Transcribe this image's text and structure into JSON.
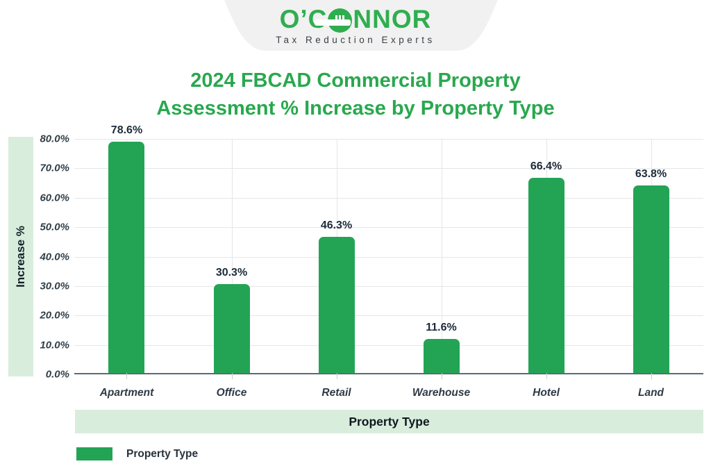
{
  "logo": {
    "brand": "O’CONNOR",
    "brand_prefix": "O’C",
    "brand_suffix": "NNOR",
    "tagline": "Tax Reduction Experts"
  },
  "title": {
    "line1": "2024 FBCAD Commercial Property",
    "line2": "Assessment % Increase by Property Type"
  },
  "chart_data": {
    "type": "bar",
    "title": "2024 FBCAD Commercial Property Assessment % Increase by Property Type",
    "categories": [
      "Apartment",
      "Office",
      "Retail",
      "Warehouse",
      "Hotel",
      "Land"
    ],
    "values": [
      78.6,
      30.3,
      46.3,
      11.6,
      66.4,
      63.8
    ],
    "value_labels": [
      "78.6%",
      "30.3%",
      "46.3%",
      "11.6%",
      "66.4%",
      "63.8%"
    ],
    "series_name": "Property Type",
    "xlabel": "Property Type",
    "ylabel": "Increase %",
    "ylim": [
      0,
      80
    ],
    "ytick_step": 10,
    "y_tick_labels": [
      "0.0%",
      "10.0%",
      "20.0%",
      "30.0%",
      "40.0%",
      "50.0%",
      "60.0%",
      "70.0%",
      "80.0%"
    ],
    "grid": true,
    "legend": {
      "position": "bottom-left",
      "entries": [
        "Property Type"
      ]
    }
  },
  "colors": {
    "brand_green": "#2fae4f",
    "title_green": "#29a84e",
    "bar_green": "#23a455",
    "light_green_band": "#d9eddc",
    "badge_gray": "#f1f1f1",
    "axis_line": "#5b6a75",
    "gridline": "#e3e6e8",
    "dark_text": "#1c2b39"
  }
}
